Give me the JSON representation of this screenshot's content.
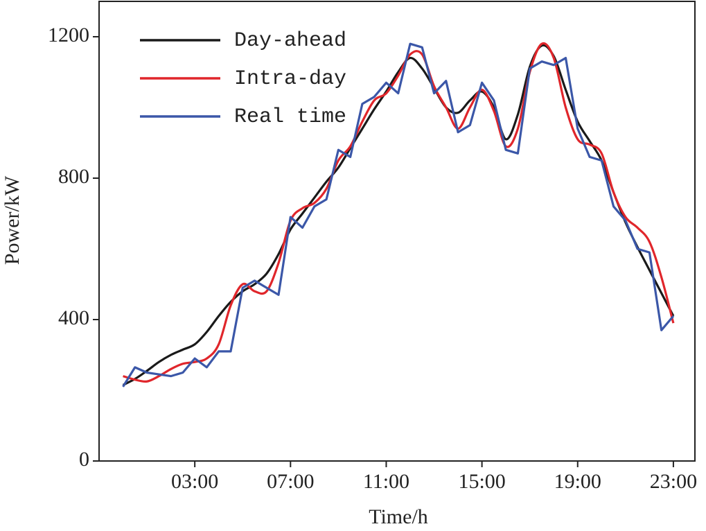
{
  "chart_data": {
    "type": "line",
    "xlabel": "Time/h",
    "ylabel": "Power/kW",
    "xlim": [
      -1,
      23.9
    ],
    "xticks": [
      {
        "value": 3,
        "label": "03:00"
      },
      {
        "value": 7,
        "label": "07:00"
      },
      {
        "value": 11,
        "label": "11:00"
      },
      {
        "value": 15,
        "label": "15:00"
      },
      {
        "value": 19,
        "label": "19:00"
      },
      {
        "value": 23,
        "label": "23:00"
      }
    ],
    "ylim": [
      0,
      1300
    ],
    "yticks": [
      0,
      400,
      800,
      1200
    ],
    "legend": "upper left",
    "x": [
      0,
      0.5,
      1,
      1.5,
      2,
      2.5,
      3,
      3.5,
      4,
      4.5,
      5,
      5.5,
      6,
      6.5,
      7,
      7.5,
      8,
      8.5,
      9,
      9.5,
      10,
      10.5,
      11,
      11.5,
      12,
      12.5,
      13,
      13.5,
      14,
      14.5,
      15,
      15.5,
      16,
      16.5,
      17,
      17.5,
      18,
      18.5,
      19,
      19.5,
      20,
      20.5,
      21,
      21.5,
      22,
      22.5,
      23
    ],
    "series": [
      {
        "name": "Day-ahead",
        "color": "#1a1a1a",
        "smooth": true,
        "values": [
          215,
          232,
          255,
          280,
          300,
          315,
          330,
          365,
          410,
          450,
          480,
          500,
          530,
          585,
          655,
          700,
          745,
          790,
          830,
          885,
          940,
          995,
          1045,
          1100,
          1140,
          1110,
          1055,
          1000,
          985,
          1020,
          1045,
          1000,
          910,
          980,
          1115,
          1175,
          1145,
          1050,
          960,
          905,
          850,
          760,
          675,
          605,
          540,
          475,
          410
        ]
      },
      {
        "name": "Intra-day",
        "color": "#e0262b",
        "smooth": true,
        "values": [
          240,
          230,
          225,
          240,
          260,
          275,
          280,
          290,
          330,
          440,
          500,
          480,
          480,
          560,
          680,
          715,
          730,
          770,
          850,
          890,
          960,
          1020,
          1040,
          1090,
          1150,
          1150,
          1060,
          1000,
          940,
          1000,
          1050,
          990,
          890,
          940,
          1100,
          1180,
          1140,
          1000,
          910,
          895,
          870,
          760,
          690,
          660,
          620,
          520,
          390
        ]
      },
      {
        "name": "Real time",
        "color": "#3b57a8",
        "smooth": false,
        "values": [
          210,
          265,
          250,
          245,
          240,
          250,
          290,
          265,
          310,
          310,
          490,
          510,
          490,
          470,
          690,
          660,
          720,
          740,
          880,
          860,
          1010,
          1030,
          1070,
          1040,
          1180,
          1170,
          1040,
          1075,
          930,
          950,
          1070,
          1020,
          880,
          870,
          1110,
          1130,
          1120,
          1140,
          940,
          860,
          850,
          720,
          680,
          600,
          590,
          370,
          410
        ]
      }
    ]
  }
}
